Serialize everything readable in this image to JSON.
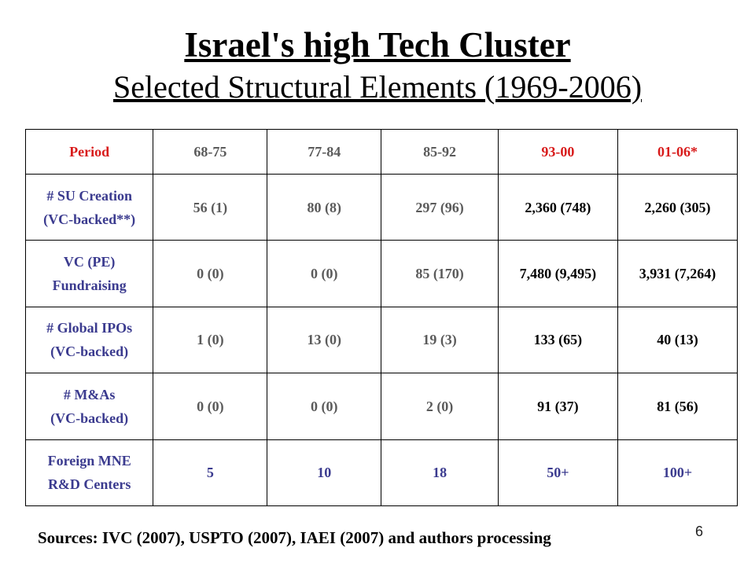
{
  "slide": {
    "title": "Israel's high Tech Cluster",
    "subtitle": "Selected Structural Elements (1969-2006)",
    "sources": "Sources: IVC (2007), USPTO (2007), IAEI (2007) and authors processing",
    "page_number": "6"
  },
  "table": {
    "headers": [
      "Period",
      "68-75",
      "77-84",
      "85-92",
      "93-00",
      "01-06*"
    ],
    "rows": [
      {
        "label": [
          "# SU Creation",
          "(VC-backed**)"
        ],
        "cells": [
          "56 (1)",
          "80 (8)",
          "297 (96)",
          "2,360 (748)",
          "2,260 (305)"
        ]
      },
      {
        "label": [
          "VC (PE)",
          "Fundraising"
        ],
        "cells": [
          "0 (0)",
          "0 (0)",
          "85 (170)",
          "7,480 (9,495)",
          "3,931 (7,264)"
        ]
      },
      {
        "label": [
          "# Global IPOs",
          "(VC-backed)"
        ],
        "cells": [
          "1 (0)",
          "13 (0)",
          "19 (3)",
          "133 (65)",
          "40 (13)"
        ]
      },
      {
        "label": [
          "# M&As",
          "(VC-backed)"
        ],
        "cells": [
          "0 (0)",
          "0 (0)",
          "2 (0)",
          "91 (37)",
          "81 (56)"
        ]
      },
      {
        "label": [
          "Foreign MNE",
          "R&D Centers"
        ],
        "cells": [
          "5",
          "10",
          "18",
          "50+",
          "100+"
        ]
      }
    ]
  },
  "colors": {
    "header_highlight": "#d81b1b",
    "row_label": "#3b3b8f",
    "early_period_text": "#5a5a5a",
    "recent_period_text": "#000000"
  }
}
